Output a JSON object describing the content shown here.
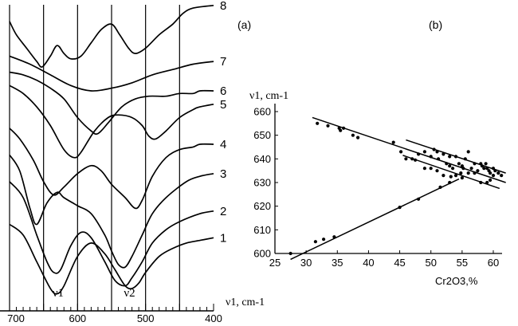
{
  "panel_a_label": "(a)",
  "panel_b_label": "(b)",
  "chart_data": [
    {
      "type": "line",
      "panel": "(a)",
      "xlabel": "ν1, cm-1",
      "ylabel": "",
      "xlim": [
        700,
        400
      ],
      "x_ticks": [
        "700",
        "600",
        "500",
        "400"
      ],
      "gridlines_x": [
        650,
        600,
        550,
        500,
        450
      ],
      "band_labels": [
        {
          "text": "ν1",
          "x": 630
        },
        {
          "text": "ν2",
          "x": 525
        }
      ],
      "series": [
        {
          "name": "1",
          "x": [
            700,
            680,
            660,
            640,
            630,
            620,
            600,
            580,
            560,
            545,
            530,
            520,
            510,
            500,
            480,
            460,
            440,
            420,
            400
          ],
          "y": [
            0.3,
            0.26,
            0.16,
            0.06,
            0.04,
            0.07,
            0.18,
            0.23,
            0.19,
            0.13,
            0.07,
            0.06,
            0.08,
            0.12,
            0.18,
            0.21,
            0.23,
            0.24,
            0.25
          ]
        },
        {
          "name": "2",
          "x": [
            700,
            680,
            660,
            645,
            635,
            625,
            610,
            595,
            580,
            560,
            545,
            530,
            520,
            505,
            490,
            470,
            450,
            420,
            400
          ],
          "y": [
            0.46,
            0.4,
            0.26,
            0.16,
            0.12,
            0.13,
            0.22,
            0.27,
            0.25,
            0.16,
            0.09,
            0.07,
            0.1,
            0.16,
            0.23,
            0.28,
            0.31,
            0.34,
            0.35
          ]
        },
        {
          "name": "3",
          "x": [
            700,
            685,
            670,
            660,
            645,
            630,
            620,
            600,
            580,
            560,
            550,
            540,
            530,
            520,
            505,
            490,
            470,
            440,
            420,
            400
          ],
          "y": [
            0.56,
            0.5,
            0.36,
            0.3,
            0.38,
            0.42,
            0.4,
            0.37,
            0.34,
            0.26,
            0.2,
            0.15,
            0.14,
            0.18,
            0.26,
            0.34,
            0.4,
            0.46,
            0.48,
            0.49
          ]
        },
        {
          "name": "4",
          "x": [
            700,
            685,
            665,
            650,
            635,
            620,
            600,
            580,
            565,
            550,
            530,
            515,
            505,
            490,
            470,
            450,
            430,
            420,
            400
          ],
          "y": [
            0.66,
            0.62,
            0.54,
            0.46,
            0.41,
            0.44,
            0.49,
            0.52,
            0.5,
            0.45,
            0.4,
            0.36,
            0.39,
            0.48,
            0.55,
            0.58,
            0.59,
            0.6,
            0.6
          ]
        },
        {
          "name": "5",
          "x": [
            700,
            680,
            660,
            640,
            620,
            605,
            595,
            575,
            555,
            540,
            520,
            505,
            495,
            485,
            470,
            450,
            430,
            420,
            400
          ],
          "y": [
            0.82,
            0.79,
            0.74,
            0.67,
            0.58,
            0.55,
            0.57,
            0.65,
            0.7,
            0.71,
            0.7,
            0.67,
            0.63,
            0.62,
            0.65,
            0.7,
            0.73,
            0.74,
            0.75
          ]
        },
        {
          "name": "6",
          "x": [
            700,
            680,
            660,
            640,
            620,
            600,
            580,
            570,
            555,
            535,
            515,
            495,
            470,
            450,
            430,
            420,
            400
          ],
          "y": [
            0.87,
            0.86,
            0.84,
            0.81,
            0.77,
            0.7,
            0.65,
            0.64,
            0.68,
            0.74,
            0.77,
            0.78,
            0.78,
            0.79,
            0.79,
            0.8,
            0.8
          ]
        },
        {
          "name": "7",
          "x": [
            700,
            670,
            640,
            610,
            580,
            550,
            520,
            490,
            460,
            430,
            400
          ],
          "y": [
            0.93,
            0.9,
            0.86,
            0.82,
            0.8,
            0.81,
            0.83,
            0.86,
            0.88,
            0.9,
            0.91
          ]
        },
        {
          "name": "8",
          "x": [
            700,
            690,
            675,
            660,
            652,
            640,
            630,
            620,
            610,
            595,
            580,
            565,
            550,
            538,
            525,
            515,
            500,
            480,
            460,
            445,
            430,
            400
          ],
          "y": [
            1.06,
            1.01,
            0.96,
            0.91,
            0.89,
            0.93,
            0.97,
            0.94,
            0.92,
            0.93,
            0.98,
            1.03,
            1.05,
            1.01,
            0.96,
            0.94,
            0.96,
            1.01,
            1.05,
            1.09,
            1.11,
            1.12
          ]
        }
      ]
    },
    {
      "type": "scatter",
      "panel": "(b)",
      "xlabel": "Cr2O3,%",
      "ylabel": "ν1, cm-1",
      "xlim": [
        25,
        62
      ],
      "ylim": [
        600,
        665
      ],
      "x_ticks": [
        25,
        30,
        35,
        40,
        45,
        50,
        55,
        60
      ],
      "y_ticks": [
        600,
        610,
        620,
        630,
        640,
        650,
        660
      ],
      "series": [
        {
          "name": "",
          "points": [
            [
              27.5,
              600
            ],
            [
              31.5,
              605
            ],
            [
              32.8,
              606
            ],
            [
              34.5,
              607
            ],
            [
              45,
              619.5
            ],
            [
              48,
              623
            ],
            [
              51.5,
              628
            ],
            [
              53,
              630
            ],
            [
              31.8,
              655
            ],
            [
              33.5,
              654
            ],
            [
              35.3,
              653
            ],
            [
              36,
              653
            ],
            [
              35.5,
              652
            ],
            [
              37.5,
              650
            ],
            [
              38.3,
              649
            ],
            [
              44,
              647
            ],
            [
              45.2,
              643
            ],
            [
              46,
              640
            ],
            [
              47,
              640
            ],
            [
              47.5,
              639.5
            ],
            [
              48,
              642
            ],
            [
              49,
              643
            ],
            [
              50,
              641
            ],
            [
              50.5,
              644
            ],
            [
              51,
              643
            ],
            [
              51.2,
              640
            ],
            [
              52,
              642
            ],
            [
              52.5,
              638
            ],
            [
              53,
              641
            ],
            [
              53.5,
              636
            ],
            [
              54,
              641
            ],
            [
              54.5,
              638
            ],
            [
              55,
              637
            ],
            [
              55.5,
              640
            ],
            [
              56,
              643
            ],
            [
              56.5,
              636
            ],
            [
              57,
              638
            ],
            [
              57.5,
              635
            ],
            [
              58,
              638
            ],
            [
              58.2,
              637
            ],
            [
              58.5,
              636
            ],
            [
              58.8,
              638
            ],
            [
              59,
              636
            ],
            [
              59.3,
              635
            ],
            [
              59.5,
              634
            ],
            [
              60,
              633
            ],
            [
              60.3,
              635
            ],
            [
              60.8,
              634
            ],
            [
              61.3,
              633
            ],
            [
              50,
              636
            ],
            [
              51,
              635
            ],
            [
              52,
              633
            ],
            [
              53,
              637
            ],
            [
              54,
              633
            ],
            [
              55,
              632
            ],
            [
              56,
              634
            ],
            [
              57,
              634
            ],
            [
              58,
              630
            ],
            [
              59,
              630
            ],
            [
              59.5,
              631
            ],
            [
              60,
              636
            ],
            [
              54.8,
              634
            ],
            [
              53.2,
              632.5
            ],
            [
              55.2,
              636
            ],
            [
              49,
              636
            ]
          ]
        }
      ],
      "fit_lines": [
        {
          "from": [
            27.5,
            597.5
          ],
          "to": [
            54.5,
            631.5
          ]
        },
        {
          "from": [
            31,
            657.5
          ],
          "to": [
            62,
            630
          ]
        },
        {
          "from": [
            45.5,
            641.5
          ],
          "to": [
            61,
            627.5
          ]
        },
        {
          "from": [
            46,
            648
          ],
          "to": [
            62,
            634
          ]
        }
      ]
    }
  ]
}
